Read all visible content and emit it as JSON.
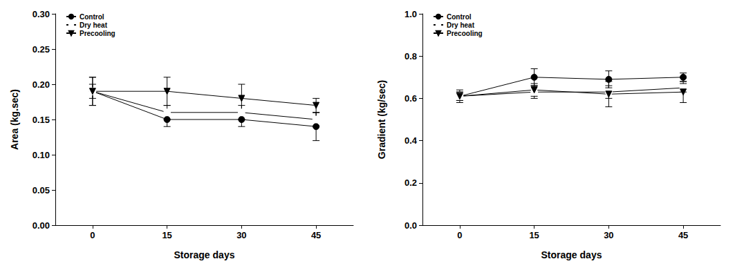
{
  "chart_data": [
    {
      "type": "line",
      "x_label": "Storage days",
      "y_label": "Area (kg.sec)",
      "categories": [
        "0",
        "15",
        "30",
        "45"
      ],
      "ylim": [
        0,
        0.3
      ],
      "yticks": [
        {
          "value": 0,
          "label": "0.00"
        },
        {
          "value": 0.05,
          "label": "0.05"
        },
        {
          "value": 0.1,
          "label": "0.10"
        },
        {
          "value": 0.15,
          "label": "0.15"
        },
        {
          "value": 0.2,
          "label": "0.20"
        },
        {
          "value": 0.25,
          "label": "0.25"
        },
        {
          "value": 0.3,
          "label": "0.30"
        }
      ],
      "grid": false,
      "legend": "upper left",
      "series": [
        {
          "name": "Control",
          "color": "#000000",
          "marker": "circle",
          "values": [
            0.19,
            0.15,
            0.15,
            0.14
          ],
          "errors": [
            0.02,
            0.01,
            0.01,
            0.02
          ]
        },
        {
          "name": "Dry heat",
          "color": "#000000",
          "marker": "circle-open",
          "values": [
            0.19,
            0.16,
            0.16,
            0.15
          ],
          "errors": [
            0.01,
            0.01,
            0.01,
            0.01
          ]
        },
        {
          "name": "Precooling",
          "color": "#000000",
          "marker": "triangle-down",
          "values": [
            0.19,
            0.19,
            0.18,
            0.17
          ],
          "errors": [
            0.02,
            0.02,
            0.02,
            0.01
          ]
        }
      ]
    },
    {
      "type": "line",
      "x_label": "Storage days",
      "y_label": "Gradient (kg/sec)",
      "categories": [
        "0",
        "15",
        "30",
        "45"
      ],
      "ylim": [
        0,
        1
      ],
      "yticks": [
        {
          "value": 0,
          "label": "0.0"
        },
        0.2,
        0.4,
        0.6,
        0.8,
        {
          "value": 1,
          "label": "1.0"
        }
      ],
      "grid": false,
      "legend": "upper left",
      "series": [
        {
          "name": "Control",
          "color": "#000000",
          "marker": "circle",
          "values": [
            0.61,
            0.7,
            0.69,
            0.7
          ],
          "errors": [
            0.03,
            0.04,
            0.04,
            0.02
          ]
        },
        {
          "name": "Dry heat",
          "color": "#000000",
          "marker": "circle-open",
          "values": [
            0.61,
            0.63,
            0.63,
            0.65
          ],
          "errors": [
            0.02,
            0.03,
            0.03,
            0.02
          ]
        },
        {
          "name": "Precooling",
          "color": "#000000",
          "marker": "triangle-down",
          "values": [
            0.61,
            0.64,
            0.62,
            0.63
          ],
          "errors": [
            0.02,
            0.03,
            0.06,
            0.05
          ]
        }
      ]
    }
  ]
}
